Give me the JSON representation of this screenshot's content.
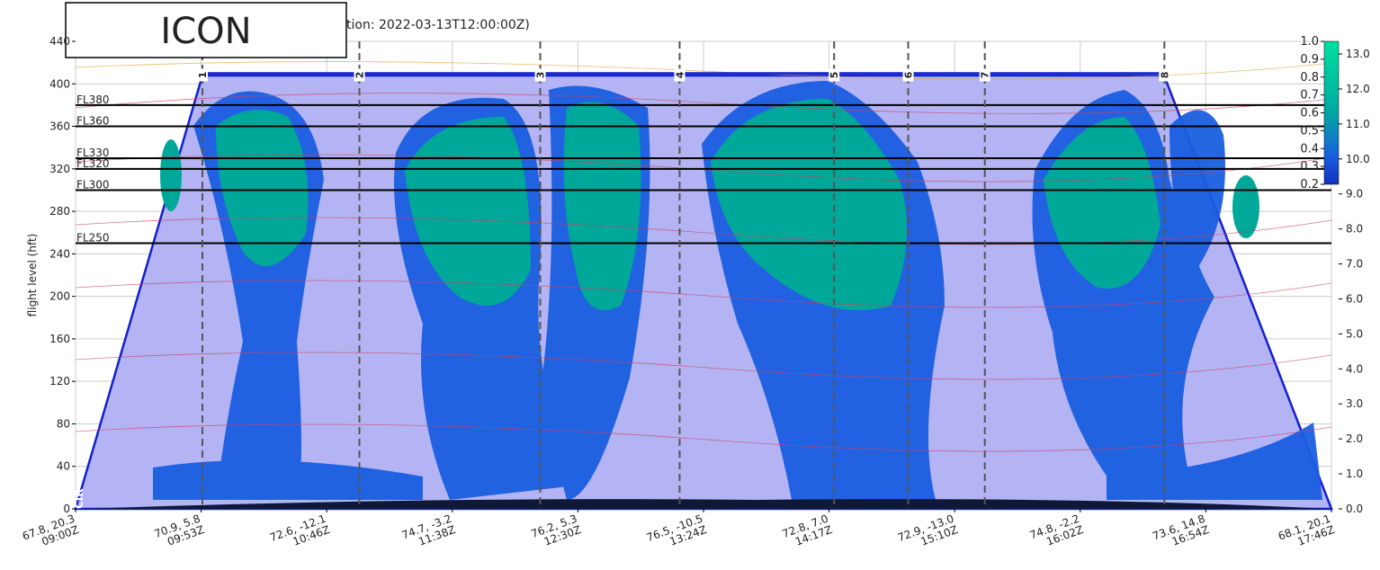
{
  "chart_data": {
    "type": "cross-section",
    "model": "ICON",
    "title": "tion: 2022-03-13T12:00:00Z)",
    "ylabel": "flight level (hft)",
    "ylim": [
      0,
      440
    ],
    "yticks": [
      0,
      40,
      80,
      120,
      160,
      200,
      240,
      280,
      320,
      360,
      400,
      440
    ],
    "xlim": [
      0,
      10
    ],
    "x_labels": [
      {
        "coord": "67.8, 20.3",
        "time": "09:00Z"
      },
      {
        "coord": "70.9, 5.8",
        "time": "09:53Z"
      },
      {
        "coord": "72.6, -12.1",
        "time": "10:46Z"
      },
      {
        "coord": "74.7, -3.2",
        "time": "11:38Z"
      },
      {
        "coord": "76.2, 5.3",
        "time": "12:30Z"
      },
      {
        "coord": "76.5, -10.5",
        "time": "13:24Z"
      },
      {
        "coord": "72.8, 7.0",
        "time": "14:17Z"
      },
      {
        "coord": "72.9, -13.0",
        "time": "15:10Z"
      },
      {
        "coord": "74.8, -2.2",
        "time": "16:02Z"
      },
      {
        "coord": "73.6, 14.8",
        "time": "16:54Z"
      },
      {
        "coord": "68.1, 20.1",
        "time": "17:46Z"
      }
    ],
    "xticks": [
      0,
      1,
      2,
      3,
      4,
      5,
      6,
      7,
      8,
      9,
      10
    ],
    "route_ceiling": 410,
    "waypoints": [
      {
        "label": "1",
        "x": 1.01
      },
      {
        "label": "2",
        "x": 2.26
      },
      {
        "label": "3",
        "x": 3.7
      },
      {
        "label": "4",
        "x": 4.81
      },
      {
        "label": "5",
        "x": 6.04
      },
      {
        "label": "6",
        "x": 6.63
      },
      {
        "label": "7",
        "x": 7.24
      },
      {
        "label": "8",
        "x": 8.67
      }
    ],
    "flight_levels": [
      {
        "value": 380,
        "label": "FL380"
      },
      {
        "value": 360,
        "label": "FL360"
      },
      {
        "value": 330,
        "label": "FL330"
      },
      {
        "value": 320,
        "label": "FL320"
      },
      {
        "value": 300,
        "label": "FL300"
      },
      {
        "value": 250,
        "label": "FL250"
      }
    ],
    "start_label": "CIR",
    "colorbar_ticks": [
      {
        "value": 1,
        "label": "1.0"
      },
      {
        "value": 0.9,
        "label": "0.9"
      },
      {
        "value": 0.8,
        "label": "0.8"
      },
      {
        "value": 0.7,
        "label": "0.7"
      },
      {
        "value": 0.6,
        "label": "0.6"
      },
      {
        "value": 0.5,
        "label": "0.5"
      },
      {
        "value": 0.4,
        "label": "0.4"
      },
      {
        "value": 0.3,
        "label": "0.3"
      },
      {
        "value": 0.2,
        "label": "0.2"
      }
    ],
    "colorbar_lim": [
      0.2,
      1
    ],
    "y2lim": [
      0,
      13.36
    ],
    "y2ticks": [
      {
        "value": 0,
        "label": "0.0"
      },
      {
        "value": 1,
        "label": "1.0"
      },
      {
        "value": 2,
        "label": "2.0"
      },
      {
        "value": 3,
        "label": "3.0"
      },
      {
        "value": 4,
        "label": "4.0"
      },
      {
        "value": 5,
        "label": "5.0"
      },
      {
        "value": 6,
        "label": "6.0"
      },
      {
        "value": 7,
        "label": "7.0"
      },
      {
        "value": 8,
        "label": "8.0"
      },
      {
        "value": 9,
        "label": "9.0"
      },
      {
        "value": 10,
        "label": "10.0"
      },
      {
        "value": 11,
        "label": "11.0"
      },
      {
        "value": 12,
        "label": "12.0"
      },
      {
        "value": 13,
        "label": "13.0"
      }
    ],
    "grid": true
  }
}
